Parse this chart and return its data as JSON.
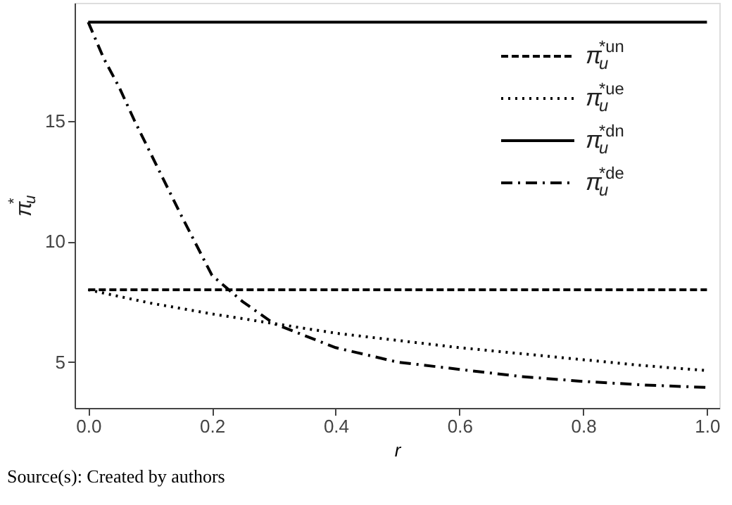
{
  "chart_data": {
    "type": "line",
    "xlabel": "r",
    "ylabel": "π$_{u}$$^{*}$",
    "annotations": [
      "Source(s): Created by authors"
    ],
    "xlim": [
      -0.022,
      1.02
    ],
    "ylim": [
      3.1,
      19.9
    ],
    "xticks": [
      {
        "value": 0,
        "label": "0.0"
      },
      0.2,
      0.4,
      0.6,
      0.8,
      {
        "value": 1,
        "label": "1.0"
      }
    ],
    "yticks": [
      5,
      10,
      15
    ],
    "grid": false,
    "legend": "top right",
    "marker": "none",
    "series": [
      {
        "name": "π$_{u}$$^{*un}$",
        "color": "#000000",
        "line_style": "dashed",
        "x": [
          0,
          1
        ],
        "values": [
          8.0,
          8.0
        ]
      },
      {
        "name": "π$_{u}$$^{*ue}$",
        "color": "#000000",
        "line_style": "dotted",
        "x": [
          0,
          0.1,
          0.2,
          0.3,
          0.4,
          0.5,
          0.6,
          0.7,
          0.8,
          0.9,
          1.0
        ],
        "values": [
          8.0,
          7.45,
          7.0,
          6.6,
          6.2,
          5.9,
          5.6,
          5.35,
          5.1,
          4.85,
          4.65
        ]
      },
      {
        "name": "π$_{u}$$^{*dn}$",
        "color": "#000000",
        "line_style": "solid",
        "x": [
          0,
          1
        ],
        "values": [
          19.1,
          19.1
        ]
      },
      {
        "name": "π$_{u}$$^{*de}$",
        "color": "#000000",
        "line_style": "dashdot",
        "x": [
          0,
          0.025,
          0.05,
          0.075,
          0.1,
          0.15,
          0.2,
          0.25,
          0.3,
          0.4,
          0.5,
          0.6,
          0.7,
          0.8,
          0.9,
          1.0
        ],
        "values": [
          19.1,
          17.6,
          16.4,
          15.0,
          13.7,
          11.1,
          8.6,
          7.5,
          6.6,
          5.6,
          5.0,
          4.7,
          4.4,
          4.2,
          4.05,
          3.95
        ]
      }
    ]
  }
}
